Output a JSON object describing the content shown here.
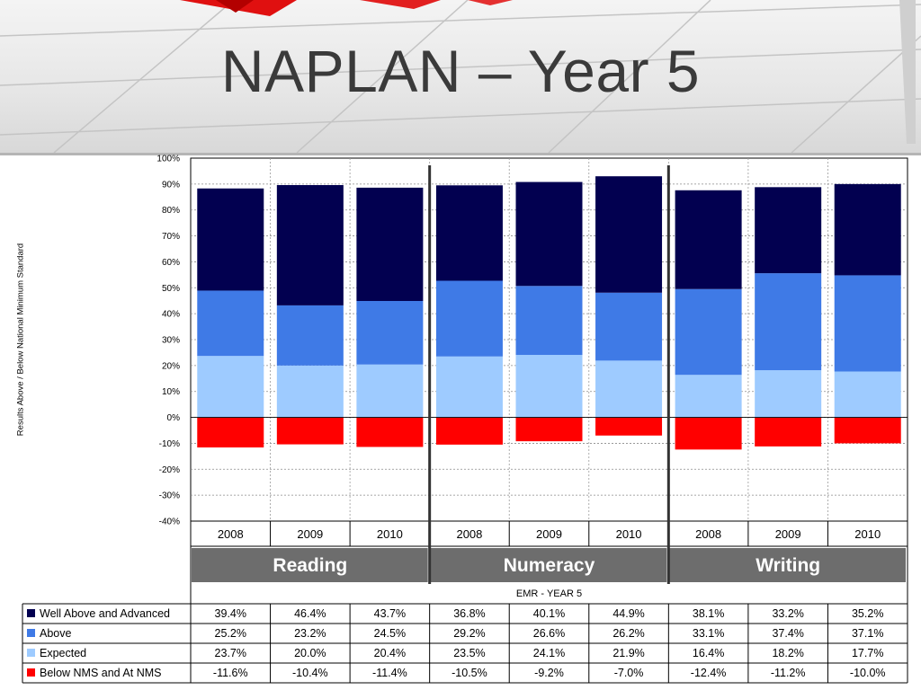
{
  "title": "NAPLAN – Year 5",
  "colors": {
    "well_above": "#020050",
    "above": "#3f7ae6",
    "expected": "#9ecbff",
    "below": "#ff0000",
    "group_bar": "#6d6d6d"
  },
  "chart_data": {
    "type": "bar",
    "stacked": true,
    "ylabel": "Results Above / Below National Minimum Standard",
    "ylim": [
      -40,
      100
    ],
    "yticks": [
      100,
      90,
      80,
      70,
      60,
      50,
      40,
      30,
      20,
      10,
      0,
      -10,
      -20,
      -30,
      -40
    ],
    "ytick_suffix": "%",
    "grid": true,
    "groups": [
      "Reading",
      "Numeracy",
      "Writing"
    ],
    "categories": [
      "2008",
      "2009",
      "2010",
      "2008",
      "2009",
      "2010",
      "2008",
      "2009",
      "2010"
    ],
    "table_title": "EMR - YEAR 5",
    "series": [
      {
        "name": "Well Above and Advanced",
        "color_key": "well_above",
        "values": [
          39.4,
          46.4,
          43.7,
          36.8,
          40.1,
          44.9,
          38.1,
          33.2,
          35.2
        ],
        "labels": [
          "39.4%",
          "46.4%",
          "43.7%",
          "36.8%",
          "40.1%",
          "44.9%",
          "38.1%",
          "33.2%",
          "35.2%"
        ]
      },
      {
        "name": "Above",
        "color_key": "above",
        "values": [
          25.2,
          23.2,
          24.5,
          29.2,
          26.6,
          26.2,
          33.1,
          37.4,
          37.1
        ],
        "labels": [
          "25.2%",
          "23.2%",
          "24.5%",
          "29.2%",
          "26.6%",
          "26.2%",
          "33.1%",
          "37.4%",
          "37.1%"
        ]
      },
      {
        "name": "Expected",
        "color_key": "expected",
        "values": [
          23.7,
          20.0,
          20.4,
          23.5,
          24.1,
          21.9,
          16.4,
          18.2,
          17.7
        ],
        "labels": [
          "23.7%",
          "20.0%",
          "20.4%",
          "23.5%",
          "24.1%",
          "21.9%",
          "16.4%",
          "18.2%",
          "17.7%"
        ]
      },
      {
        "name": "Below NMS and At NMS",
        "color_key": "below",
        "values": [
          -11.6,
          -10.4,
          -11.4,
          -10.5,
          -9.2,
          -7.0,
          -12.4,
          -11.2,
          -10.0
        ],
        "labels": [
          "-11.6%",
          "-10.4%",
          "-11.4%",
          "-10.5%",
          "-9.2%",
          "-7.0%",
          "-12.4%",
          "-11.2%",
          "-10.0%"
        ]
      }
    ]
  }
}
